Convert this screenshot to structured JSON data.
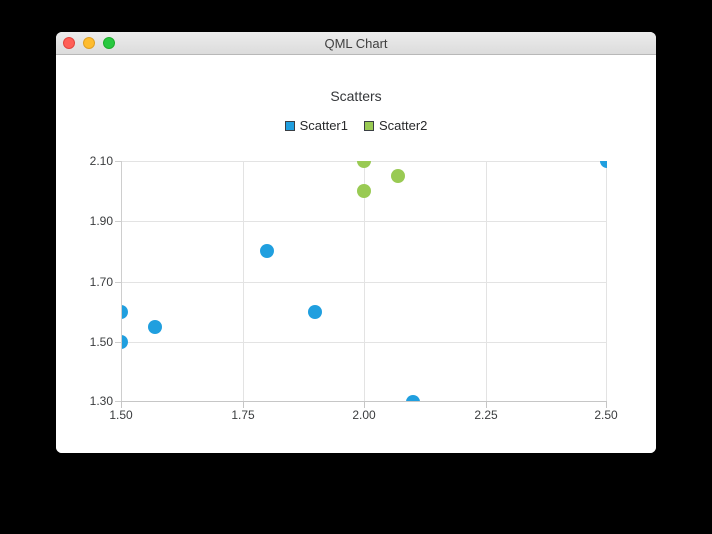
{
  "window": {
    "title": "QML Chart",
    "traffic_lights": {
      "close_color": "#ff5f57",
      "minimize_color": "#febc2e",
      "zoom_color": "#28c840"
    }
  },
  "chart_data": {
    "type": "scatter",
    "title": "Scatters",
    "xlabel": "",
    "ylabel": "",
    "xlim": [
      1.5,
      2.5
    ],
    "ylim": [
      1.3,
      2.1
    ],
    "grid": true,
    "legend_position": "top",
    "marker_size": 14,
    "xticks": {
      "values": [
        1.5,
        1.75,
        2.0,
        2.25,
        2.5
      ],
      "labels": [
        "1.50",
        "1.75",
        "2.00",
        "2.25",
        "2.50"
      ]
    },
    "yticks": {
      "values": [
        1.3,
        1.5,
        1.7,
        1.9,
        2.1
      ],
      "labels": [
        "1.30",
        "1.50",
        "1.70",
        "1.90",
        "2.10"
      ]
    },
    "series": [
      {
        "name": "Scatter1",
        "color": "#209fdf",
        "marker_border": "#3a3f44",
        "points": [
          [
            1.5,
            1.5
          ],
          [
            1.5,
            1.6
          ],
          [
            1.57,
            1.55
          ],
          [
            1.8,
            1.8
          ],
          [
            1.9,
            1.6
          ],
          [
            2.1,
            1.3
          ],
          [
            2.5,
            2.1
          ]
        ]
      },
      {
        "name": "Scatter2",
        "color": "#99ca53",
        "marker_border": "#3a3f44",
        "points": [
          [
            2.0,
            2.0
          ],
          [
            2.0,
            2.1
          ],
          [
            2.07,
            2.05
          ]
        ]
      }
    ]
  }
}
